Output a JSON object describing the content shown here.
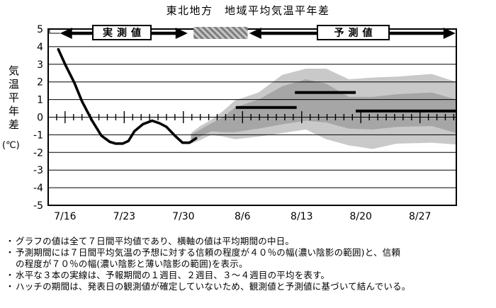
{
  "header": {
    "title": "東北地方　地域平均気温平年差"
  },
  "footnotes": {
    "items": [
      {
        "bullet": "・",
        "text": "グラフの値は全て７日間平均値であり、横軸の値は平均期間の中日。"
      },
      {
        "bullet": "・",
        "text": "予測期間には７日間平均気温の予想に対する信頼の程度が４０％の幅(濃い陰影の範囲)と、信頼"
      },
      {
        "bullet": "",
        "text": "の程度が７０％の幅(濃い陰影と薄い陰影の範囲)を表示。"
      },
      {
        "bullet": "・",
        "text": "水平な３本の実線は、予報期間の１週目、２週目、３～４週目の平均を表す。"
      },
      {
        "bullet": "・",
        "text": "ハッチの期間は、発表日の観測値が確定していないため、観測値と予測値に基づいて結んでいる。"
      }
    ]
  },
  "chart_data": {
    "type": "line",
    "title": "東北地方　地域平均気温平年差",
    "ylabel": "気温平年差",
    "ylabel_unit": "(℃)",
    "ylim": [
      -5,
      5
    ],
    "y_ticks": [
      5,
      4,
      3,
      2,
      1,
      0,
      -1,
      -2,
      -3,
      -4,
      -5
    ],
    "grid": "horizontal",
    "x_axis": {
      "unit": "days from 7/14",
      "range_days": [
        0,
        48.3
      ],
      "tick_days": [
        2,
        9,
        16,
        23,
        30,
        37,
        44
      ],
      "tick_labels": [
        "7/16",
        "7/23",
        "7/30",
        "8/6",
        "8/13",
        "8/20",
        "8/27"
      ],
      "daily_minor_ticks": true
    },
    "period_band": {
      "observed_label": "実測値",
      "forecast_label": "予測値",
      "observed_arrow_days": [
        1.4,
        16.5
      ],
      "hatch_days": [
        17.2,
        23.6
      ],
      "forecast_arrow_days": [
        23.8,
        48.2
      ]
    },
    "observed_line": {
      "color": "#000000",
      "points": [
        [
          1.2,
          3.85
        ],
        [
          2.0,
          3.0
        ],
        [
          3.1,
          1.95
        ],
        [
          4.0,
          0.9
        ],
        [
          5.2,
          -0.2
        ],
        [
          6.3,
          -1.05
        ],
        [
          7.3,
          -1.4
        ],
        [
          8.0,
          -1.5
        ],
        [
          8.8,
          -1.5
        ],
        [
          9.5,
          -1.35
        ],
        [
          10.2,
          -0.8
        ],
        [
          11.2,
          -0.4
        ],
        [
          12.3,
          -0.2
        ],
        [
          13.2,
          -0.35
        ],
        [
          14.0,
          -0.55
        ],
        [
          15.0,
          -1.05
        ],
        [
          15.9,
          -1.45
        ],
        [
          16.7,
          -1.45
        ],
        [
          17.5,
          -1.2
        ]
      ]
    },
    "confidence_bands": {
      "light": {
        "probability_pct": 70,
        "color": "#c9c9c9",
        "top": [
          [
            16.9,
            -0.9
          ],
          [
            18.0,
            -0.5
          ],
          [
            19.3,
            -0.15
          ],
          [
            20.7,
            0.35
          ],
          [
            22.1,
            0.95
          ],
          [
            24.9,
            1.4
          ],
          [
            27.7,
            2.4
          ],
          [
            30.5,
            2.75
          ],
          [
            32.9,
            2.75
          ],
          [
            35.6,
            2.15
          ],
          [
            38.4,
            2.25
          ],
          [
            41.2,
            2.3
          ],
          [
            45.4,
            2.45
          ],
          [
            48.3,
            2.0
          ]
        ],
        "bottom": [
          [
            16.9,
            -1.5
          ],
          [
            18.0,
            -1.3
          ],
          [
            19.3,
            -1.0
          ],
          [
            20.7,
            -1.1
          ],
          [
            22.1,
            -1.25
          ],
          [
            24.9,
            -1.1
          ],
          [
            27.7,
            -0.9
          ],
          [
            30.5,
            -0.7
          ],
          [
            32.9,
            -1.25
          ],
          [
            35.6,
            -1.6
          ],
          [
            38.4,
            -1.8
          ],
          [
            41.2,
            -1.5
          ],
          [
            45.4,
            -1.45
          ],
          [
            48.3,
            -1.55
          ]
        ]
      },
      "dark": {
        "probability_pct": 40,
        "color": "#a6a6a6",
        "top": [
          [
            16.9,
            -1.0
          ],
          [
            18.0,
            -0.7
          ],
          [
            19.3,
            -0.35
          ],
          [
            20.7,
            0.0
          ],
          [
            22.1,
            0.55
          ],
          [
            24.9,
            1.0
          ],
          [
            27.7,
            1.75
          ],
          [
            30.5,
            2.15
          ],
          [
            32.9,
            1.9
          ],
          [
            35.6,
            1.15
          ],
          [
            38.4,
            1.15
          ],
          [
            41.2,
            1.3
          ],
          [
            45.4,
            1.4
          ],
          [
            48.3,
            1.0
          ]
        ],
        "bottom": [
          [
            16.9,
            -1.35
          ],
          [
            18.0,
            -1.1
          ],
          [
            19.3,
            -0.8
          ],
          [
            20.7,
            -0.85
          ],
          [
            22.1,
            -0.85
          ],
          [
            24.9,
            -0.65
          ],
          [
            27.7,
            -0.4
          ],
          [
            30.5,
            -0.2
          ],
          [
            32.9,
            -0.3
          ],
          [
            35.6,
            -0.65
          ],
          [
            38.4,
            -0.7
          ],
          [
            41.2,
            -0.55
          ],
          [
            45.4,
            -0.5
          ],
          [
            48.3,
            -0.9
          ]
        ]
      }
    },
    "week_mean_bars": [
      {
        "week": 1,
        "span_days": [
          22.2,
          29.4
        ],
        "value": 0.55
      },
      {
        "week": 2,
        "span_days": [
          29.2,
          36.4
        ],
        "value": 1.4
      },
      {
        "week": "3-4",
        "span_days": [
          36.4,
          48.3
        ],
        "value": 0.35
      }
    ]
  }
}
